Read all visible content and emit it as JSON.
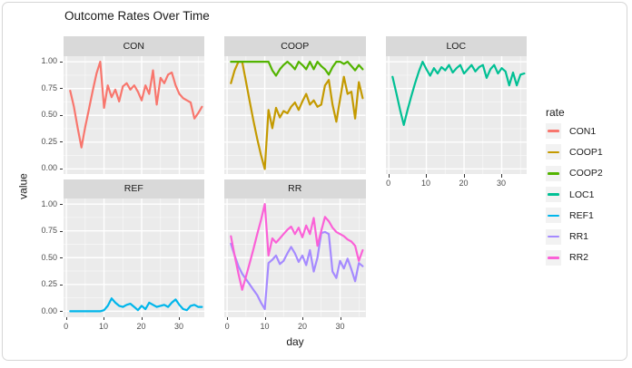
{
  "title": "Outcome Rates Over Time",
  "colors": {
    "panel_bg": "#EBEBEB",
    "strip_bg": "#D9D9D9",
    "grid": "#FFFFFF",
    "axis_text": "#4D4D4D",
    "text": "#1A1A1A",
    "legend_key_bg": "#F2F2F2",
    "card_border": "#D6D6D6"
  },
  "chart_data": {
    "type": "line",
    "title": "Outcome Rates Over Time",
    "xlabel": "day",
    "ylabel": "value",
    "legend_title": "rate",
    "legend_position": "right",
    "grid": true,
    "facet_layout": {
      "rows": 2,
      "cols": 3
    },
    "facets": [
      {
        "label": "CON",
        "row": 0,
        "col": 0,
        "series": [
          "CON1"
        ],
        "x_axis": false
      },
      {
        "label": "COOP",
        "row": 0,
        "col": 1,
        "series": [
          "COOP1",
          "COOP2"
        ],
        "x_axis": false
      },
      {
        "label": "LOC",
        "row": 0,
        "col": 2,
        "series": [
          "LOC1"
        ],
        "x_axis": true
      },
      {
        "label": "REF",
        "row": 1,
        "col": 0,
        "series": [
          "REF1"
        ],
        "x_axis": true
      },
      {
        "label": "RR",
        "row": 1,
        "col": 1,
        "series": [
          "RR1",
          "RR2"
        ],
        "x_axis": true
      }
    ],
    "x": [
      1,
      2,
      3,
      4,
      5,
      6,
      7,
      8,
      9,
      10,
      11,
      12,
      13,
      14,
      15,
      16,
      17,
      18,
      19,
      20,
      21,
      22,
      23,
      24,
      25,
      26,
      27,
      28,
      29,
      30,
      31,
      32,
      33,
      34,
      35,
      36
    ],
    "series": [
      {
        "name": "CON1",
        "color": "#F8766D",
        "values": [
          0.73,
          0.58,
          0.38,
          0.2,
          0.39,
          0.56,
          0.73,
          0.89,
          1.0,
          0.57,
          0.78,
          0.67,
          0.74,
          0.63,
          0.77,
          0.8,
          0.74,
          0.78,
          0.72,
          0.64,
          0.78,
          0.7,
          0.92,
          0.6,
          0.85,
          0.8,
          0.88,
          0.9,
          0.78,
          0.7,
          0.66,
          0.64,
          0.62,
          0.47,
          0.52,
          0.58
        ]
      },
      {
        "name": "COOP1",
        "color": "#C49A00",
        "values": [
          0.8,
          0.92,
          1.0,
          1.0,
          0.82,
          0.63,
          0.45,
          0.28,
          0.13,
          0.0,
          0.55,
          0.38,
          0.57,
          0.48,
          0.54,
          0.52,
          0.58,
          0.62,
          0.55,
          0.63,
          0.7,
          0.6,
          0.64,
          0.58,
          0.6,
          0.78,
          0.83,
          0.6,
          0.44,
          0.65,
          0.86,
          0.7,
          0.72,
          0.47,
          0.81,
          0.66
        ]
      },
      {
        "name": "COOP2",
        "color": "#53B400",
        "values": [
          1.0,
          1.0,
          1.0,
          1.0,
          1.0,
          1.0,
          1.0,
          1.0,
          1.0,
          1.0,
          1.0,
          0.92,
          0.87,
          0.93,
          0.97,
          1.0,
          0.97,
          0.93,
          1.0,
          0.97,
          0.93,
          1.0,
          0.93,
          1.0,
          0.96,
          0.93,
          0.88,
          0.95,
          1.0,
          1.0,
          0.98,
          1.0,
          0.96,
          0.92,
          0.97,
          0.93
        ]
      },
      {
        "name": "LOC1",
        "color": "#00C094",
        "values": [
          0.86,
          0.71,
          0.55,
          0.41,
          0.55,
          0.68,
          0.8,
          0.91,
          1.0,
          0.93,
          0.87,
          0.94,
          0.89,
          0.95,
          0.92,
          0.97,
          0.9,
          0.94,
          0.97,
          0.89,
          0.93,
          0.97,
          0.91,
          0.95,
          0.97,
          0.85,
          0.93,
          0.97,
          0.89,
          0.94,
          0.91,
          0.78,
          0.9,
          0.78,
          0.88,
          0.89
        ]
      },
      {
        "name": "REF1",
        "color": "#00B6EB",
        "values": [
          0.0,
          0.0,
          0.0,
          0.0,
          0.0,
          0.0,
          0.0,
          0.0,
          0.0,
          0.01,
          0.05,
          0.12,
          0.08,
          0.05,
          0.04,
          0.06,
          0.07,
          0.04,
          0.01,
          0.05,
          0.02,
          0.08,
          0.06,
          0.04,
          0.05,
          0.06,
          0.04,
          0.08,
          0.11,
          0.06,
          0.02,
          0.01,
          0.05,
          0.06,
          0.04,
          0.04
        ]
      },
      {
        "name": "RR1",
        "color": "#A58AFF",
        "values": [
          0.63,
          0.52,
          0.42,
          0.35,
          0.3,
          0.25,
          0.2,
          0.15,
          0.08,
          0.02,
          0.45,
          0.48,
          0.52,
          0.44,
          0.47,
          0.54,
          0.6,
          0.54,
          0.46,
          0.52,
          0.43,
          0.57,
          0.37,
          0.5,
          0.73,
          0.74,
          0.72,
          0.37,
          0.31,
          0.47,
          0.4,
          0.49,
          0.39,
          0.28,
          0.45,
          0.42
        ]
      },
      {
        "name": "RR2",
        "color": "#FB61D7",
        "values": [
          0.7,
          0.52,
          0.35,
          0.2,
          0.32,
          0.45,
          0.58,
          0.72,
          0.85,
          1.0,
          0.52,
          0.68,
          0.64,
          0.68,
          0.72,
          0.76,
          0.79,
          0.72,
          0.78,
          0.69,
          0.8,
          0.72,
          0.87,
          0.61,
          0.75,
          0.88,
          0.84,
          0.78,
          0.74,
          0.72,
          0.7,
          0.67,
          0.65,
          0.61,
          0.47,
          0.57
        ]
      }
    ],
    "x_ticks": [
      0,
      10,
      20,
      30
    ],
    "x_minor": [
      5,
      15,
      25,
      35
    ],
    "y_ticks": [
      "1.00",
      "0.75",
      "0.50",
      "0.25",
      "0.00"
    ],
    "y_tick_values": [
      1.0,
      0.75,
      0.5,
      0.25,
      0.0
    ],
    "y_minor": [
      0.875,
      0.625,
      0.375,
      0.125
    ],
    "xlim": [
      -0.75,
      36.75
    ],
    "ylim": [
      -0.052,
      1.052
    ]
  }
}
